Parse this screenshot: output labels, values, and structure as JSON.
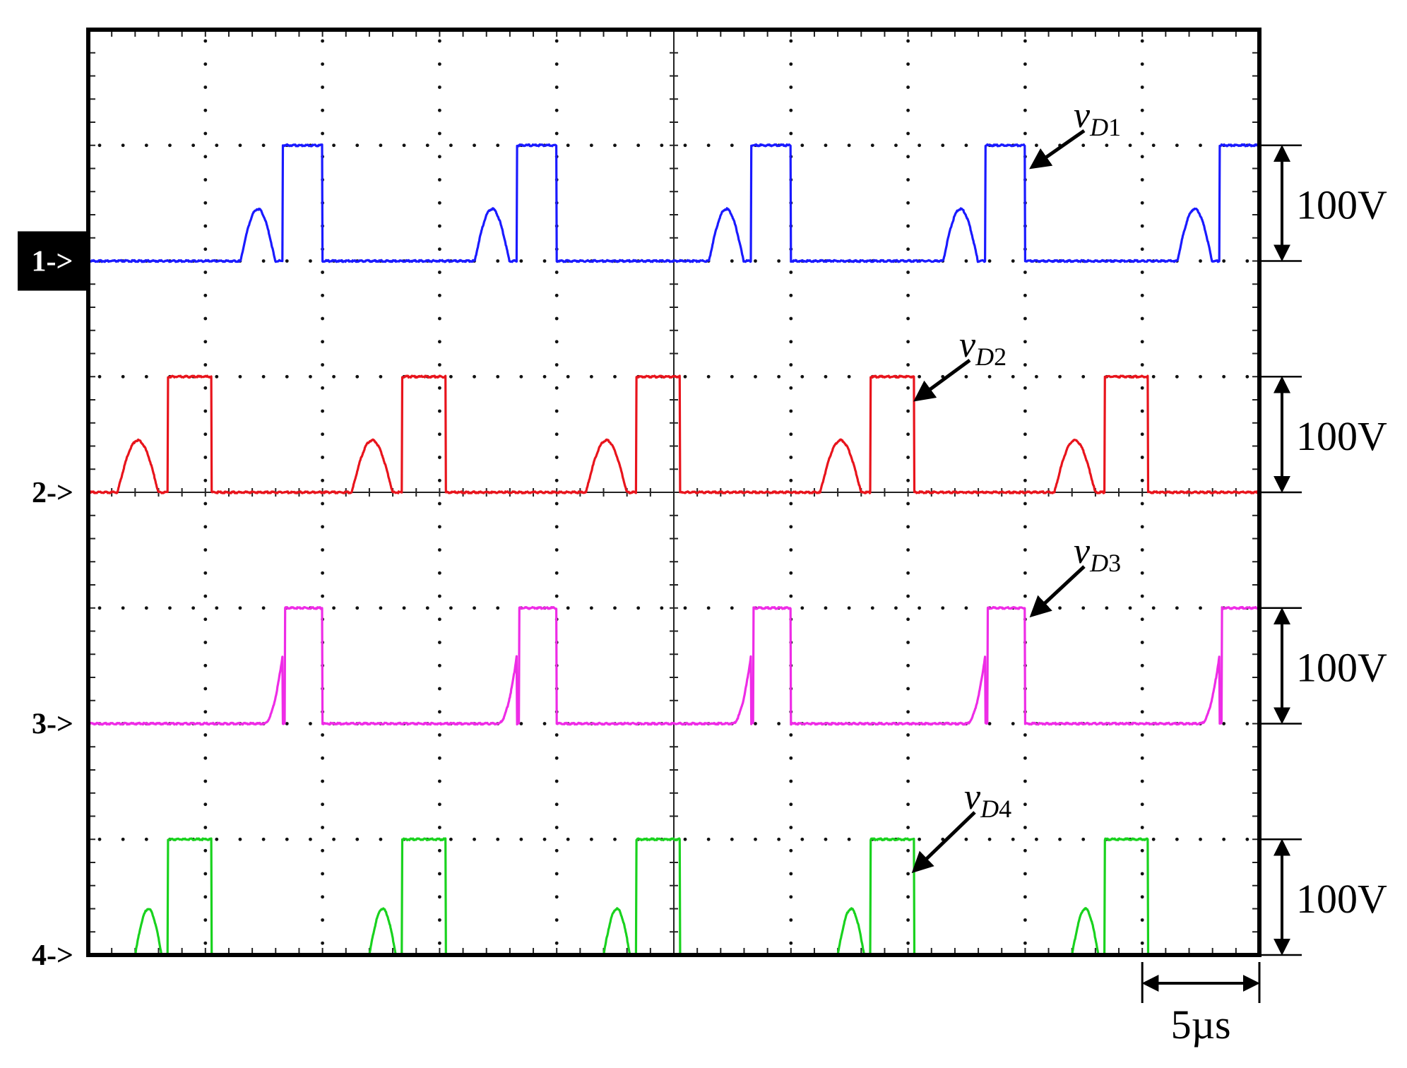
{
  "chart_data": {
    "type": "line",
    "title": "",
    "xlabel": "",
    "ylabel": "",
    "time_per_div": "5µs",
    "volts_per_div": "100V",
    "divisions": {
      "horizontal": 10,
      "vertical": 8
    },
    "channels": [
      {
        "marker": "1->",
        "label": "v",
        "subscript": "D1",
        "scale_label": "100V",
        "color": "#1a1aff",
        "ground_div": 6,
        "period_div": 2,
        "phase_div": 0,
        "shape": "bump",
        "segments": [
          {
            "type": "level",
            "from": 0.0,
            "to": 1.3,
            "level": 0.0
          },
          {
            "type": "bump",
            "from": 1.3,
            "to": 1.64,
            "peak": 0.45
          },
          {
            "type": "level",
            "from": 1.66,
            "to": 2.05,
            "level": 1.0
          }
        ],
        "peak_level_div": 1.0
      },
      {
        "marker": "2->",
        "label": "v",
        "subscript": "D2",
        "scale_label": "100V",
        "color": "#e8141c",
        "ground_div": 4,
        "period_div": 2,
        "phase_div": 0,
        "segments": [
          {
            "type": "level",
            "from": 0.0,
            "to": 0.25,
            "level": 0.0
          },
          {
            "type": "bump",
            "from": 0.25,
            "to": 0.65,
            "peak": 0.45
          },
          {
            "type": "level",
            "from": 0.68,
            "to": 1.05,
            "level": 1.0
          }
        ],
        "peak_level_div": 1.0
      },
      {
        "marker": "3->",
        "label": "v",
        "subscript": "D3",
        "scale_label": "100V",
        "color": "#ee2ce6",
        "ground_div": 2,
        "period_div": 2,
        "phase_div": 0,
        "segments": [
          {
            "type": "level",
            "from": 0.0,
            "to": 1.5,
            "level": 0.0
          },
          {
            "type": "ramp",
            "from": 1.5,
            "to": 1.66,
            "peak": 0.6
          },
          {
            "type": "level",
            "from": 1.68,
            "to": 2.05,
            "level": 1.0
          }
        ],
        "peak_level_div": 1.0
      },
      {
        "marker": "4->",
        "label": "v",
        "subscript": "D4",
        "scale_label": "100V",
        "color": "#19d21e",
        "ground_div": 0,
        "period_div": 2,
        "phase_div": 0,
        "segments": [
          {
            "type": "level",
            "from": 0.0,
            "to": 0.4,
            "level": 0.0
          },
          {
            "type": "bump",
            "from": 0.4,
            "to": 0.66,
            "peak": 0.4
          },
          {
            "type": "level",
            "from": 0.68,
            "to": 1.05,
            "level": 1.0
          }
        ],
        "peak_level_div": 1.0
      }
    ]
  },
  "time_scale_label": "5µs"
}
